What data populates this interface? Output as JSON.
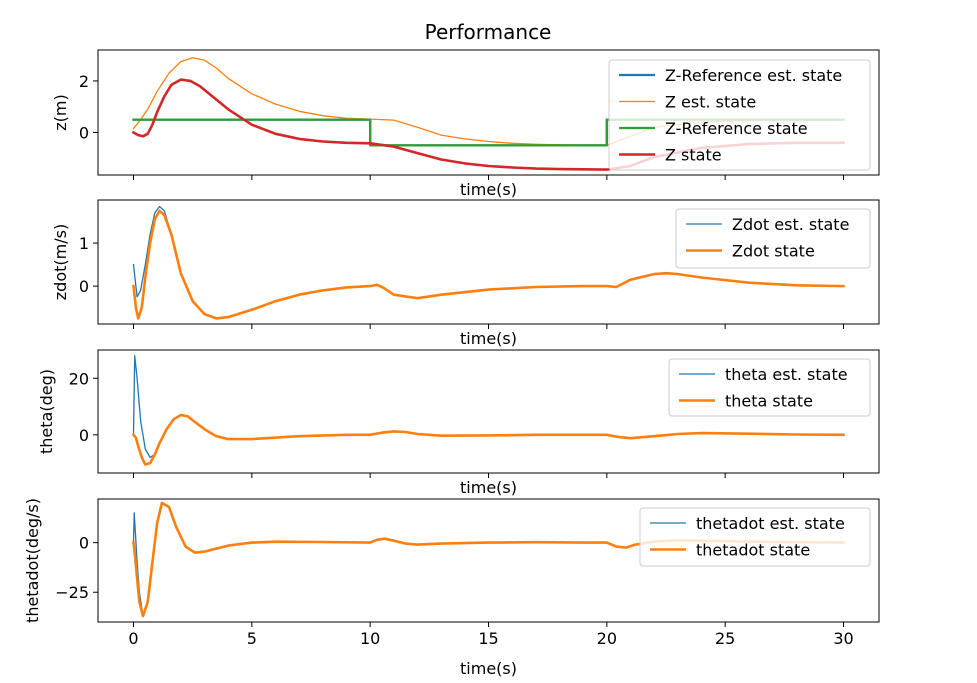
{
  "colors": {
    "est": "#1f77b4",
    "state": "#ff7f0e",
    "ref": "#2ca02c",
    "z_state": "#d62728"
  },
  "chart_data": [
    {
      "type": "line",
      "title": "Performance",
      "xlabel": "time(s)",
      "ylabel": "z(m)",
      "xlim": [
        -1.5,
        31.5
      ],
      "ylim": [
        -1.65,
        3.2
      ],
      "x_ticks": [
        0,
        5,
        10,
        15,
        20,
        25,
        30
      ],
      "x_tick_labels_shown": false,
      "y_ticks": [
        0,
        2
      ],
      "y_tick_labels": [
        "0",
        "2"
      ],
      "legend": "upper right",
      "series": [
        {
          "name": "Z-Reference est. state",
          "color": "#1f77b4",
          "width": 2.2,
          "x": [
            0,
            10,
            10,
            20,
            20,
            30
          ],
          "y": [
            0.5,
            0.5,
            -0.5,
            -0.5,
            0.5,
            0.5
          ]
        },
        {
          "name": "Z est. state",
          "color": "#ff7f0e",
          "width": 1.3,
          "x": [
            0,
            0.3,
            0.6,
            1.0,
            1.5,
            2.0,
            2.5,
            3.0,
            3.5,
            4.0,
            5.0,
            6.0,
            7.0,
            8.0,
            9.0,
            10.0,
            11.0,
            12.0,
            13.0,
            14.0,
            15.0,
            16.0,
            17.0,
            18.0,
            19.0,
            20.0,
            21.0,
            22.0,
            24.0,
            26.0,
            28.0,
            30.0
          ],
          "y": [
            0.15,
            0.5,
            0.9,
            1.6,
            2.3,
            2.75,
            2.9,
            2.8,
            2.5,
            2.1,
            1.5,
            1.1,
            0.82,
            0.65,
            0.55,
            0.52,
            0.48,
            0.2,
            -0.1,
            -0.25,
            -0.35,
            -0.42,
            -0.46,
            -0.48,
            -0.49,
            -0.5,
            -0.15,
            0.2,
            0.4,
            0.46,
            0.48,
            0.5
          ]
        },
        {
          "name": "Z-Reference state",
          "color": "#2ca02c",
          "width": 2.2,
          "x": [
            0,
            10,
            10,
            20,
            20,
            30
          ],
          "y": [
            0.5,
            0.5,
            -0.5,
            -0.5,
            0.5,
            0.5
          ]
        },
        {
          "name": "Z state",
          "color": "#d62728",
          "width": 2.6,
          "x": [
            0,
            0.2,
            0.4,
            0.6,
            0.8,
            1.0,
            1.3,
            1.6,
            2.0,
            2.4,
            2.8,
            3.2,
            3.6,
            4.0,
            5.0,
            6.0,
            7.0,
            8.0,
            9.0,
            10.0,
            11.0,
            12.0,
            13.0,
            14.0,
            15.0,
            16.0,
            17.0,
            18.0,
            19.0,
            20.0,
            21.0,
            22.0,
            24.0,
            26.0,
            28.0,
            30.0
          ],
          "y": [
            0.0,
            -0.1,
            -0.15,
            -0.05,
            0.3,
            0.8,
            1.4,
            1.85,
            2.05,
            2.0,
            1.8,
            1.5,
            1.2,
            0.9,
            0.3,
            -0.05,
            -0.25,
            -0.35,
            -0.4,
            -0.42,
            -0.55,
            -0.8,
            -1.05,
            -1.2,
            -1.3,
            -1.36,
            -1.4,
            -1.42,
            -1.43,
            -1.44,
            -1.3,
            -0.95,
            -0.6,
            -0.45,
            -0.4,
            -0.4
          ]
        }
      ]
    },
    {
      "type": "line",
      "title": "",
      "xlabel": "time(s)",
      "ylabel": "zdot(m/s)",
      "xlim": [
        -1.5,
        31.5
      ],
      "ylim": [
        -0.88,
        2.0
      ],
      "x_ticks": [
        0,
        5,
        10,
        15,
        20,
        25,
        30
      ],
      "x_tick_labels_shown": false,
      "y_ticks": [
        0,
        1
      ],
      "y_tick_labels": [
        "0",
        "1"
      ],
      "legend": "upper right",
      "series": [
        {
          "name": "Zdot est. state",
          "color": "#1f77b4",
          "width": 1.3,
          "x": [
            0,
            0.15,
            0.3,
            0.5,
            0.7,
            0.9,
            1.1,
            1.3,
            1.6,
            2.0,
            2.5,
            3.0,
            3.5,
            4.0,
            5.0,
            6.0,
            7.0,
            8.0,
            9.0,
            10.0,
            10.3,
            10.6,
            11.0,
            12.0,
            13.0,
            15.0,
            17.0,
            19.0,
            20.0,
            20.4,
            21.0,
            22.0,
            22.5,
            23.0,
            24.0,
            26.0,
            28.0,
            30.0
          ],
          "y": [
            0.5,
            -0.25,
            -0.1,
            0.5,
            1.2,
            1.7,
            1.85,
            1.75,
            1.2,
            0.3,
            -0.35,
            -0.65,
            -0.75,
            -0.72,
            -0.55,
            -0.35,
            -0.2,
            -0.1,
            -0.03,
            0.0,
            0.03,
            -0.05,
            -0.2,
            -0.28,
            -0.2,
            -0.08,
            -0.02,
            0.0,
            0.0,
            -0.02,
            0.15,
            0.28,
            0.3,
            0.28,
            0.2,
            0.08,
            0.02,
            0.0
          ]
        },
        {
          "name": "Zdot state",
          "color": "#ff7f0e",
          "width": 2.6,
          "x": [
            0,
            0.1,
            0.2,
            0.35,
            0.5,
            0.7,
            0.9,
            1.1,
            1.3,
            1.6,
            2.0,
            2.5,
            3.0,
            3.5,
            4.0,
            5.0,
            6.0,
            7.0,
            8.0,
            9.0,
            10.0,
            10.3,
            10.6,
            11.0,
            12.0,
            13.0,
            15.0,
            17.0,
            19.0,
            20.0,
            20.4,
            21.0,
            22.0,
            22.5,
            23.0,
            24.0,
            26.0,
            28.0,
            30.0
          ],
          "y": [
            0.0,
            -0.5,
            -0.75,
            -0.5,
            0.2,
            1.0,
            1.55,
            1.75,
            1.65,
            1.2,
            0.3,
            -0.35,
            -0.65,
            -0.75,
            -0.72,
            -0.55,
            -0.35,
            -0.2,
            -0.1,
            -0.03,
            0.0,
            0.03,
            -0.05,
            -0.2,
            -0.28,
            -0.2,
            -0.08,
            -0.02,
            0.0,
            0.0,
            -0.02,
            0.15,
            0.28,
            0.3,
            0.28,
            0.2,
            0.08,
            0.02,
            0.0
          ]
        }
      ]
    },
    {
      "type": "line",
      "title": "",
      "xlabel": "time(s)",
      "ylabel": "theta(deg)",
      "xlim": [
        -1.5,
        31.5
      ],
      "ylim": [
        -13.5,
        30
      ],
      "x_ticks": [
        0,
        5,
        10,
        15,
        20,
        25,
        30
      ],
      "x_tick_labels_shown": false,
      "y_ticks": [
        0,
        20
      ],
      "y_tick_labels": [
        "0",
        "20"
      ],
      "legend": "upper right",
      "series": [
        {
          "name": "theta est. state",
          "color": "#1f77b4",
          "width": 1.3,
          "x": [
            0,
            0.05,
            0.15,
            0.3,
            0.5,
            0.7,
            0.9,
            1.1,
            1.4,
            1.7,
            2.0,
            2.3,
            2.6,
            3.0,
            3.5,
            4.0,
            5.0,
            7.0,
            9.0,
            10.0,
            10.5,
            11.0,
            11.5,
            12.0,
            13.0,
            15.0,
            17.0,
            19.0,
            20.0,
            20.5,
            21.0,
            22.0,
            23.0,
            24.0,
            26.0,
            28.0,
            30.0
          ],
          "y": [
            0,
            28,
            20,
            5,
            -5,
            -8,
            -7,
            -3,
            2,
            5.5,
            7,
            6.5,
            4.5,
            2,
            -0.5,
            -1.5,
            -1.5,
            -0.5,
            0,
            0,
            0.8,
            1.2,
            1,
            0.3,
            -0.3,
            -0.2,
            0,
            0,
            0,
            -0.8,
            -1.2,
            -0.5,
            0.3,
            0.6,
            0.4,
            0.1,
            0
          ]
        },
        {
          "name": "theta state",
          "color": "#ff7f0e",
          "width": 2.6,
          "x": [
            0,
            0.1,
            0.2,
            0.35,
            0.5,
            0.7,
            0.9,
            1.1,
            1.4,
            1.7,
            2.0,
            2.3,
            2.6,
            3.0,
            3.5,
            4.0,
            5.0,
            7.0,
            9.0,
            10.0,
            10.5,
            11.0,
            11.5,
            12.0,
            13.0,
            15.0,
            17.0,
            19.0,
            20.0,
            20.5,
            21.0,
            22.0,
            23.0,
            24.0,
            26.0,
            28.0,
            30.0
          ],
          "y": [
            0,
            -1,
            -4,
            -8,
            -10.5,
            -10,
            -7,
            -3,
            2,
            5.5,
            7,
            6.5,
            4.5,
            2,
            -0.5,
            -1.5,
            -1.5,
            -0.5,
            0,
            0,
            0.8,
            1.2,
            1,
            0.3,
            -0.3,
            -0.2,
            0,
            0,
            0,
            -0.8,
            -1.2,
            -0.5,
            0.3,
            0.6,
            0.4,
            0.1,
            0
          ]
        }
      ]
    },
    {
      "type": "line",
      "title": "",
      "xlabel": "time(s)",
      "ylabel": "thetadot(deg/s)",
      "xlim": [
        -1.5,
        31.5
      ],
      "ylim": [
        -40,
        22
      ],
      "x_ticks": [
        0,
        5,
        10,
        15,
        20,
        25,
        30
      ],
      "x_tick_labels": [
        "0",
        "5",
        "10",
        "15",
        "20",
        "25",
        "30"
      ],
      "x_tick_labels_shown": true,
      "y_ticks": [
        0,
        -25
      ],
      "y_tick_labels": [
        "0",
        "−25"
      ],
      "legend": "upper right",
      "series": [
        {
          "name": "thetadot est. state",
          "color": "#1f77b4",
          "width": 1.3,
          "x": [
            0,
            0.03,
            0.08,
            0.15,
            0.25,
            0.4,
            0.6,
            0.8,
            1.0,
            1.2,
            1.5,
            1.8,
            2.2,
            2.6,
            3.0,
            3.5,
            4.0,
            5.0,
            6.0,
            8.0,
            10.0,
            10.3,
            10.6,
            11.0,
            11.5,
            12.0,
            13.0,
            15.0,
            17.0,
            19.0,
            20.0,
            20.4,
            20.8,
            21.2,
            22.0,
            23.0,
            24.0,
            26.0,
            28.0,
            30.0
          ],
          "y": [
            0,
            15,
            5,
            -10,
            -25,
            -37,
            -30,
            -10,
            10,
            20,
            18,
            8,
            -2,
            -5,
            -4.5,
            -3,
            -1.5,
            0,
            0.5,
            0.3,
            0,
            1.5,
            2,
            1,
            -0.5,
            -1,
            -0.5,
            0,
            0.2,
            0,
            0,
            -2,
            -2.5,
            -1,
            0.5,
            1.2,
            1,
            0.5,
            0.2,
            0
          ]
        },
        {
          "name": "thetadot state",
          "color": "#ff7f0e",
          "width": 2.6,
          "x": [
            0,
            0.05,
            0.15,
            0.25,
            0.4,
            0.6,
            0.8,
            1.0,
            1.2,
            1.5,
            1.8,
            2.2,
            2.6,
            3.0,
            3.5,
            4.0,
            5.0,
            6.0,
            8.0,
            10.0,
            10.3,
            10.6,
            11.0,
            11.5,
            12.0,
            13.0,
            15.0,
            17.0,
            19.0,
            20.0,
            20.4,
            20.8,
            21.2,
            22.0,
            23.0,
            24.0,
            26.0,
            28.0,
            30.0
          ],
          "y": [
            0,
            -5,
            -18,
            -30,
            -37,
            -30,
            -10,
            10,
            20,
            18,
            8,
            -2,
            -5,
            -4.5,
            -3,
            -1.5,
            0,
            0.5,
            0.3,
            0,
            1.5,
            2,
            1,
            -0.5,
            -1,
            -0.5,
            0,
            0.2,
            0,
            0,
            -2,
            -2.5,
            -1,
            0.5,
            1.2,
            1,
            0.5,
            0.2,
            0
          ]
        }
      ]
    }
  ]
}
